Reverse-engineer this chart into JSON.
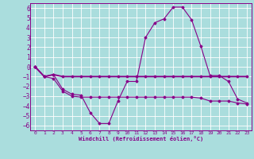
{
  "xlabel": "Windchill (Refroidissement éolien,°C)",
  "bg_color": "#aadddd",
  "grid_color": "#ffffff",
  "line_color": "#880088",
  "x": [
    0,
    1,
    2,
    3,
    4,
    5,
    6,
    7,
    8,
    9,
    10,
    11,
    12,
    13,
    14,
    15,
    16,
    17,
    18,
    19,
    20,
    21,
    22,
    23
  ],
  "line_upper": [
    0.0,
    -1.0,
    -0.8,
    -2.3,
    -2.8,
    -2.9,
    -4.7,
    -5.8,
    -5.8,
    -3.5,
    -1.5,
    -1.5,
    3.0,
    4.5,
    4.9,
    6.1,
    6.1,
    4.8,
    2.1,
    -0.9,
    -0.9,
    -1.5,
    -3.3,
    -3.7
  ],
  "line_mid": [
    0.0,
    -1.0,
    -0.8,
    -1.0,
    -1.0,
    -1.0,
    -1.0,
    -1.0,
    -1.0,
    -1.0,
    -1.0,
    -1.0,
    -1.0,
    -1.0,
    -1.0,
    -1.0,
    -1.0,
    -1.0,
    -1.0,
    -1.0,
    -1.0,
    -1.0,
    -1.0,
    -1.0
  ],
  "line_lower": [
    0.0,
    -1.0,
    -1.2,
    -2.5,
    -3.0,
    -3.1,
    -3.1,
    -3.1,
    -3.1,
    -3.1,
    -3.1,
    -3.1,
    -3.1,
    -3.1,
    -3.1,
    -3.1,
    -3.1,
    -3.1,
    -3.2,
    -3.5,
    -3.5,
    -3.5,
    -3.7,
    -3.8
  ],
  "ylim": [
    -6.5,
    6.5
  ],
  "xlim": [
    -0.5,
    23.5
  ],
  "yticks": [
    -6,
    -5,
    -4,
    -3,
    -2,
    -1,
    0,
    1,
    2,
    3,
    4,
    5,
    6
  ],
  "xticks": [
    0,
    1,
    2,
    3,
    4,
    5,
    6,
    7,
    8,
    9,
    10,
    11,
    12,
    13,
    14,
    15,
    16,
    17,
    18,
    19,
    20,
    21,
    22,
    23
  ]
}
